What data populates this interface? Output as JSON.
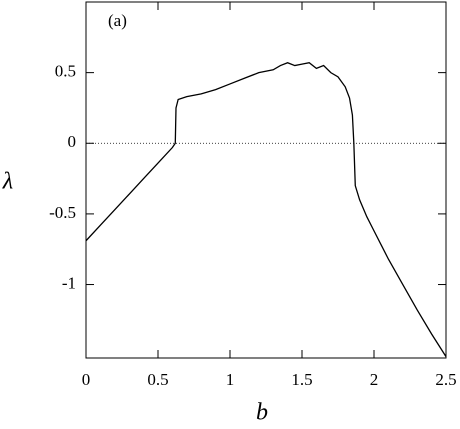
{
  "chart_data": {
    "type": "line",
    "annotation": "(a)",
    "x_label": "b",
    "y_label": "λ",
    "x": [
      0,
      0.1,
      0.2,
      0.3,
      0.4,
      0.5,
      0.6,
      0.62,
      0.625,
      0.64,
      0.7,
      0.8,
      0.9,
      1.0,
      1.1,
      1.2,
      1.3,
      1.35,
      1.4,
      1.45,
      1.5,
      1.55,
      1.6,
      1.65,
      1.7,
      1.75,
      1.8,
      1.83,
      1.85,
      1.86,
      1.87,
      1.9,
      1.95,
      2.0,
      2.1,
      2.2,
      2.3,
      2.4,
      2.5
    ],
    "series": [
      {
        "color": "#000000",
        "values": [
          -0.69,
          -0.58,
          -0.47,
          -0.36,
          -0.25,
          -0.14,
          -0.03,
          0,
          0.25,
          0.31,
          0.33,
          0.35,
          0.38,
          0.42,
          0.46,
          0.5,
          0.52,
          0.55,
          0.57,
          0.55,
          0.56,
          0.57,
          0.53,
          0.55,
          0.5,
          0.47,
          0.4,
          0.32,
          0.2,
          0,
          -0.3,
          -0.4,
          -0.52,
          -0.62,
          -0.82,
          -1.0,
          -1.18,
          -1.35,
          -1.51
        ]
      }
    ],
    "xlim": [
      0,
      2.5
    ],
    "xticks": [
      0,
      0.5,
      1,
      1.5,
      2,
      2.5
    ],
    "ylim": [
      -1.52,
      1.0
    ],
    "yticks": [
      -1,
      -0.5,
      0,
      0.5
    ],
    "zero_line": true
  }
}
